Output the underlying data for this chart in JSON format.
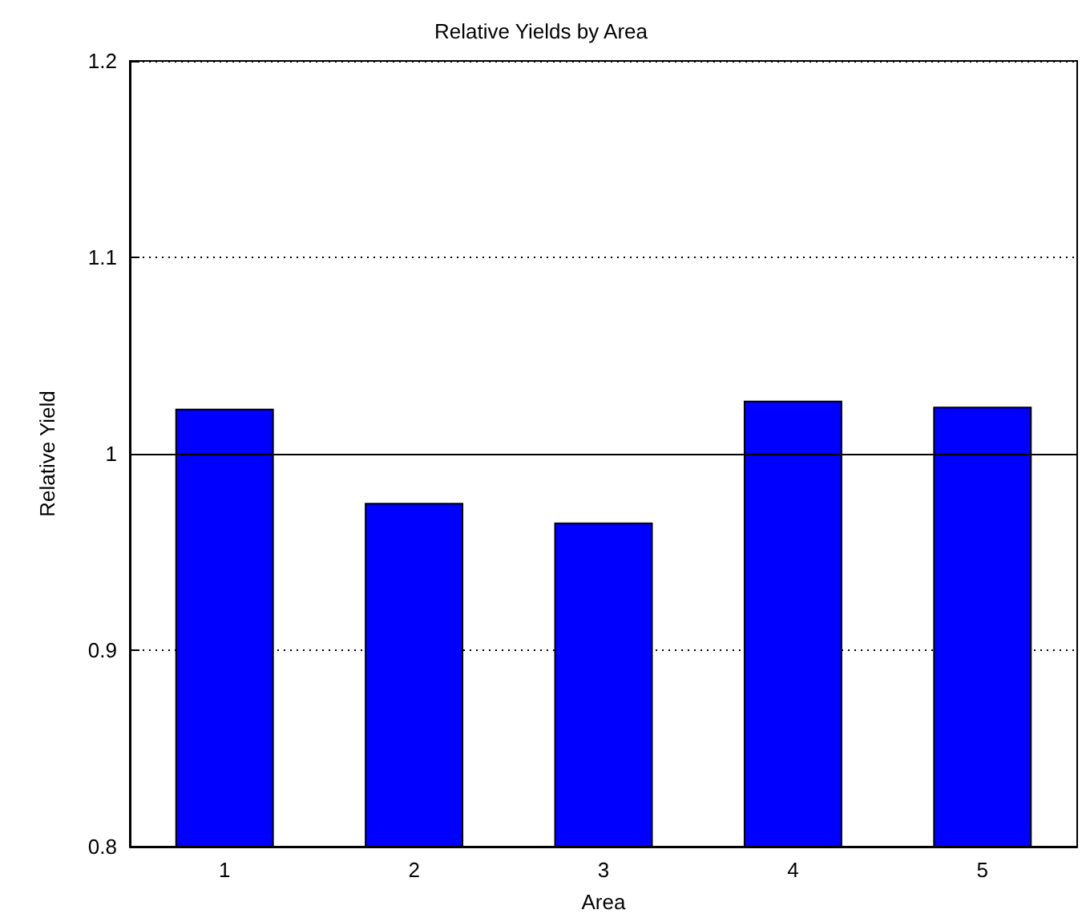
{
  "chart_data": {
    "type": "bar",
    "title": "Relative Yields by Area",
    "xlabel": "Area",
    "ylabel": "Relative Yield",
    "categories": [
      "1",
      "2",
      "3",
      "4",
      "5"
    ],
    "values": [
      1.023,
      0.975,
      0.965,
      1.027,
      1.024
    ],
    "color": "#0000ff",
    "ylim": [
      0.8,
      1.2
    ],
    "yticks": [
      0.8,
      0.9,
      1,
      1.1,
      1.2
    ],
    "grid": "y",
    "ref_lines": [
      {
        "axis": "y",
        "value": 1,
        "color": "#000000",
        "line_style": "solid"
      }
    ]
  }
}
